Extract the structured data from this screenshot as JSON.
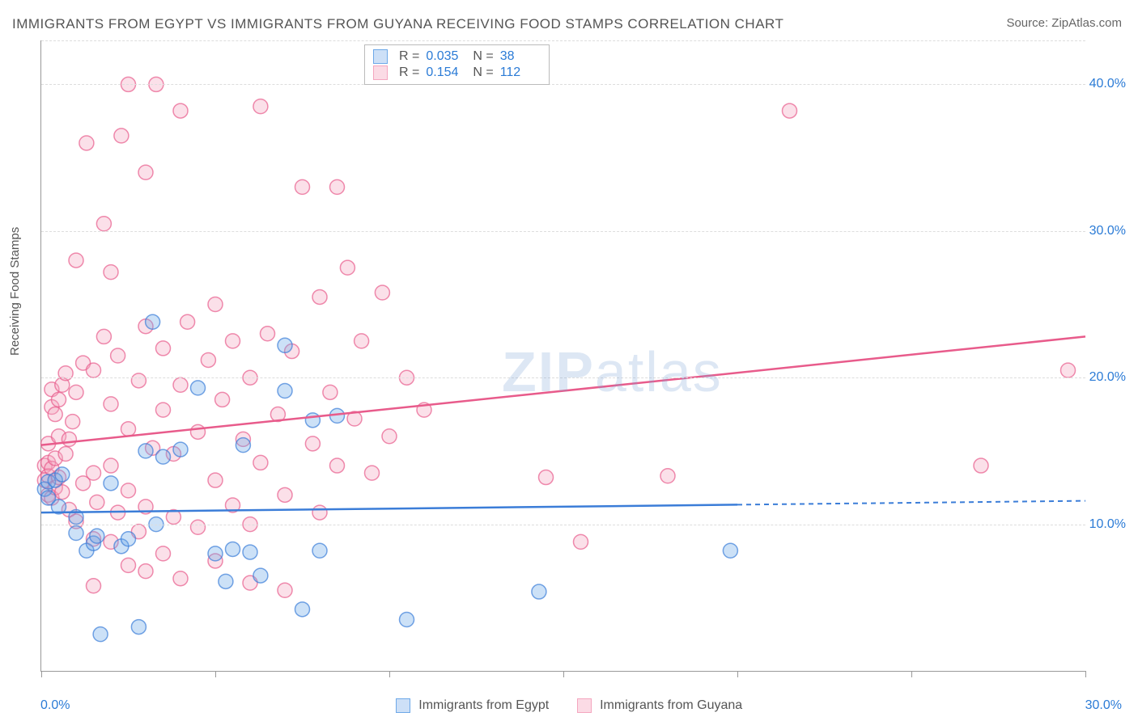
{
  "title": "IMMIGRANTS FROM EGYPT VS IMMIGRANTS FROM GUYANA RECEIVING FOOD STAMPS CORRELATION CHART",
  "source_label": "Source: ZipAtlas.com",
  "y_axis_label": "Receiving Food Stamps",
  "watermark": {
    "part1": "ZIP",
    "part2": "atlas"
  },
  "chart": {
    "type": "scatter",
    "background_color": "#ffffff",
    "grid_color": "#dddddd",
    "axis_color": "#999999",
    "tick_label_color": "#2b7bd6",
    "tick_label_fontsize": 16,
    "xlim": [
      0,
      30
    ],
    "ylim": [
      0,
      43
    ],
    "x_ticks": [
      0,
      5,
      10,
      15,
      20,
      25,
      30
    ],
    "x_tick_labels": [
      "0.0%",
      "",
      "",
      "",
      "",
      "",
      "30.0%"
    ],
    "y_gridlines": [
      10,
      20,
      30,
      40
    ],
    "y_tick_labels": [
      "10.0%",
      "20.0%",
      "30.0%",
      "40.0%"
    ],
    "marker_radius": 9,
    "marker_fill_opacity": 0.35,
    "marker_stroke_width": 1.5,
    "series": [
      {
        "name": "Immigrants from Egypt",
        "color": "#6da8e8",
        "stroke": "#3b7dd8",
        "r_value": "0.035",
        "n_value": "38",
        "trend": {
          "x1": 0,
          "y1": 10.8,
          "x2": 30,
          "y2": 11.6,
          "solid_until_x": 20
        },
        "points": [
          [
            0.1,
            12.4
          ],
          [
            0.2,
            11.8
          ],
          [
            0.2,
            12.9
          ],
          [
            0.4,
            13.0
          ],
          [
            0.5,
            11.2
          ],
          [
            0.6,
            13.4
          ],
          [
            1.0,
            9.4
          ],
          [
            1.0,
            10.5
          ],
          [
            1.3,
            8.2
          ],
          [
            1.5,
            8.7
          ],
          [
            1.6,
            9.2
          ],
          [
            1.7,
            2.5
          ],
          [
            2.0,
            12.8
          ],
          [
            2.3,
            8.5
          ],
          [
            2.5,
            9.0
          ],
          [
            2.8,
            3.0
          ],
          [
            3.0,
            15.0
          ],
          [
            3.2,
            23.8
          ],
          [
            3.3,
            10.0
          ],
          [
            3.5,
            14.6
          ],
          [
            4.0,
            15.1
          ],
          [
            4.5,
            19.3
          ],
          [
            5.0,
            8.0
          ],
          [
            5.3,
            6.1
          ],
          [
            5.5,
            8.3
          ],
          [
            5.8,
            15.4
          ],
          [
            6.0,
            8.1
          ],
          [
            6.3,
            6.5
          ],
          [
            7.0,
            19.1
          ],
          [
            7.0,
            22.2
          ],
          [
            7.5,
            4.2
          ],
          [
            7.8,
            17.1
          ],
          [
            8.0,
            8.2
          ],
          [
            8.5,
            17.4
          ],
          [
            10.5,
            3.5
          ],
          [
            14.3,
            5.4
          ],
          [
            19.8,
            8.2
          ]
        ]
      },
      {
        "name": "Immigrants from Guyana",
        "color": "#f4a6bf",
        "stroke": "#e85b8b",
        "r_value": "0.154",
        "n_value": "112",
        "trend": {
          "x1": 0,
          "y1": 15.4,
          "x2": 30,
          "y2": 22.8,
          "solid_until_x": 30
        },
        "points": [
          [
            0.1,
            13.0
          ],
          [
            0.1,
            14.0
          ],
          [
            0.2,
            12.0
          ],
          [
            0.2,
            13.3
          ],
          [
            0.2,
            14.2
          ],
          [
            0.2,
            15.5
          ],
          [
            0.3,
            11.8
          ],
          [
            0.3,
            13.8
          ],
          [
            0.3,
            18.0
          ],
          [
            0.3,
            19.2
          ],
          [
            0.4,
            12.5
          ],
          [
            0.4,
            14.5
          ],
          [
            0.4,
            17.5
          ],
          [
            0.5,
            13.2
          ],
          [
            0.5,
            16.0
          ],
          [
            0.5,
            18.5
          ],
          [
            0.6,
            12.2
          ],
          [
            0.6,
            19.5
          ],
          [
            0.7,
            14.8
          ],
          [
            0.7,
            20.3
          ],
          [
            0.8,
            11.0
          ],
          [
            0.8,
            15.8
          ],
          [
            0.9,
            17.0
          ],
          [
            1.0,
            10.2
          ],
          [
            1.0,
            19.0
          ],
          [
            1.0,
            28.0
          ],
          [
            1.2,
            12.8
          ],
          [
            1.2,
            21.0
          ],
          [
            1.3,
            36.0
          ],
          [
            1.5,
            5.8
          ],
          [
            1.5,
            9.0
          ],
          [
            1.5,
            13.5
          ],
          [
            1.5,
            20.5
          ],
          [
            1.6,
            11.5
          ],
          [
            1.8,
            22.8
          ],
          [
            1.8,
            30.5
          ],
          [
            2.0,
            8.8
          ],
          [
            2.0,
            14.0
          ],
          [
            2.0,
            18.2
          ],
          [
            2.0,
            27.2
          ],
          [
            2.2,
            10.8
          ],
          [
            2.2,
            21.5
          ],
          [
            2.3,
            36.5
          ],
          [
            2.5,
            7.2
          ],
          [
            2.5,
            12.3
          ],
          [
            2.5,
            16.5
          ],
          [
            2.5,
            40.0
          ],
          [
            2.8,
            9.5
          ],
          [
            2.8,
            19.8
          ],
          [
            3.0,
            6.8
          ],
          [
            3.0,
            11.2
          ],
          [
            3.0,
            23.5
          ],
          [
            3.0,
            34.0
          ],
          [
            3.2,
            15.2
          ],
          [
            3.3,
            40.0
          ],
          [
            3.5,
            8.0
          ],
          [
            3.5,
            17.8
          ],
          [
            3.5,
            22.0
          ],
          [
            3.8,
            10.5
          ],
          [
            3.8,
            14.8
          ],
          [
            4.0,
            6.3
          ],
          [
            4.0,
            19.5
          ],
          [
            4.0,
            38.2
          ],
          [
            4.2,
            23.8
          ],
          [
            4.5,
            9.8
          ],
          [
            4.5,
            16.3
          ],
          [
            4.8,
            21.2
          ],
          [
            5.0,
            7.5
          ],
          [
            5.0,
            13.0
          ],
          [
            5.0,
            25.0
          ],
          [
            5.2,
            18.5
          ],
          [
            5.5,
            11.3
          ],
          [
            5.5,
            22.5
          ],
          [
            5.8,
            15.8
          ],
          [
            6.0,
            6.0
          ],
          [
            6.0,
            10.0
          ],
          [
            6.0,
            20.0
          ],
          [
            6.3,
            14.2
          ],
          [
            6.3,
            38.5
          ],
          [
            6.5,
            23.0
          ],
          [
            6.8,
            17.5
          ],
          [
            7.0,
            5.5
          ],
          [
            7.0,
            12.0
          ],
          [
            7.2,
            21.8
          ],
          [
            7.5,
            33.0
          ],
          [
            7.8,
            15.5
          ],
          [
            8.0,
            10.8
          ],
          [
            8.0,
            25.5
          ],
          [
            8.3,
            19.0
          ],
          [
            8.5,
            14.0
          ],
          [
            8.5,
            33.0
          ],
          [
            8.8,
            27.5
          ],
          [
            9.0,
            17.2
          ],
          [
            9.2,
            22.5
          ],
          [
            9.5,
            13.5
          ],
          [
            9.8,
            25.8
          ],
          [
            10.0,
            16.0
          ],
          [
            10.5,
            20.0
          ],
          [
            11.0,
            17.8
          ],
          [
            14.5,
            13.2
          ],
          [
            15.5,
            8.8
          ],
          [
            18.0,
            13.3
          ],
          [
            21.5,
            38.2
          ],
          [
            27.0,
            14.0
          ],
          [
            29.5,
            20.5
          ]
        ]
      }
    ]
  },
  "legend": {
    "bottom": [
      {
        "label": "Immigrants from Egypt",
        "fill": "#cde0f7",
        "border": "#6da8e8"
      },
      {
        "label": "Immigrants from Guyana",
        "fill": "#fbdbe5",
        "border": "#f4a6bf"
      }
    ]
  },
  "colors": {
    "title": "#555555",
    "source": "#666666",
    "value_link": "#2b7bd6"
  }
}
